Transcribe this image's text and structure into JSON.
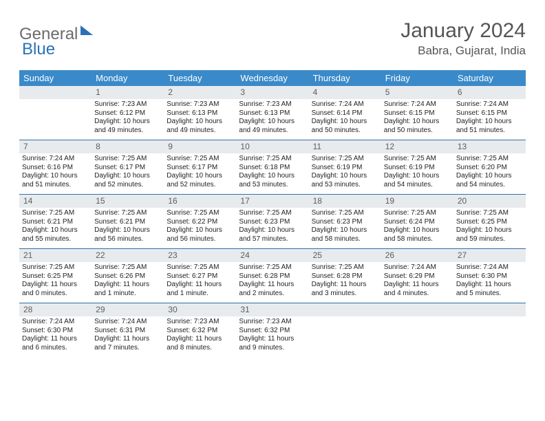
{
  "logo": {
    "part1": "General",
    "part2": "Blue"
  },
  "title": "January 2024",
  "location": "Babra, Gujarat, India",
  "colors": {
    "header_bar": "#3a8ac9",
    "daynum_bg": "#e8ebee",
    "row_border": "#2f6fa8",
    "logo_gray": "#6b6b6b",
    "logo_blue": "#2a72b5"
  },
  "days_of_week": [
    "Sunday",
    "Monday",
    "Tuesday",
    "Wednesday",
    "Thursday",
    "Friday",
    "Saturday"
  ],
  "weeks": [
    [
      {
        "n": "",
        "sr": "",
        "ss": "",
        "dl": ""
      },
      {
        "n": "1",
        "sr": "Sunrise: 7:23 AM",
        "ss": "Sunset: 6:12 PM",
        "dl": "Daylight: 10 hours and 49 minutes."
      },
      {
        "n": "2",
        "sr": "Sunrise: 7:23 AM",
        "ss": "Sunset: 6:13 PM",
        "dl": "Daylight: 10 hours and 49 minutes."
      },
      {
        "n": "3",
        "sr": "Sunrise: 7:23 AM",
        "ss": "Sunset: 6:13 PM",
        "dl": "Daylight: 10 hours and 49 minutes."
      },
      {
        "n": "4",
        "sr": "Sunrise: 7:24 AM",
        "ss": "Sunset: 6:14 PM",
        "dl": "Daylight: 10 hours and 50 minutes."
      },
      {
        "n": "5",
        "sr": "Sunrise: 7:24 AM",
        "ss": "Sunset: 6:15 PM",
        "dl": "Daylight: 10 hours and 50 minutes."
      },
      {
        "n": "6",
        "sr": "Sunrise: 7:24 AM",
        "ss": "Sunset: 6:15 PM",
        "dl": "Daylight: 10 hours and 51 minutes."
      }
    ],
    [
      {
        "n": "7",
        "sr": "Sunrise: 7:24 AM",
        "ss": "Sunset: 6:16 PM",
        "dl": "Daylight: 10 hours and 51 minutes."
      },
      {
        "n": "8",
        "sr": "Sunrise: 7:25 AM",
        "ss": "Sunset: 6:17 PM",
        "dl": "Daylight: 10 hours and 52 minutes."
      },
      {
        "n": "9",
        "sr": "Sunrise: 7:25 AM",
        "ss": "Sunset: 6:17 PM",
        "dl": "Daylight: 10 hours and 52 minutes."
      },
      {
        "n": "10",
        "sr": "Sunrise: 7:25 AM",
        "ss": "Sunset: 6:18 PM",
        "dl": "Daylight: 10 hours and 53 minutes."
      },
      {
        "n": "11",
        "sr": "Sunrise: 7:25 AM",
        "ss": "Sunset: 6:19 PM",
        "dl": "Daylight: 10 hours and 53 minutes."
      },
      {
        "n": "12",
        "sr": "Sunrise: 7:25 AM",
        "ss": "Sunset: 6:19 PM",
        "dl": "Daylight: 10 hours and 54 minutes."
      },
      {
        "n": "13",
        "sr": "Sunrise: 7:25 AM",
        "ss": "Sunset: 6:20 PM",
        "dl": "Daylight: 10 hours and 54 minutes."
      }
    ],
    [
      {
        "n": "14",
        "sr": "Sunrise: 7:25 AM",
        "ss": "Sunset: 6:21 PM",
        "dl": "Daylight: 10 hours and 55 minutes."
      },
      {
        "n": "15",
        "sr": "Sunrise: 7:25 AM",
        "ss": "Sunset: 6:21 PM",
        "dl": "Daylight: 10 hours and 56 minutes."
      },
      {
        "n": "16",
        "sr": "Sunrise: 7:25 AM",
        "ss": "Sunset: 6:22 PM",
        "dl": "Daylight: 10 hours and 56 minutes."
      },
      {
        "n": "17",
        "sr": "Sunrise: 7:25 AM",
        "ss": "Sunset: 6:23 PM",
        "dl": "Daylight: 10 hours and 57 minutes."
      },
      {
        "n": "18",
        "sr": "Sunrise: 7:25 AM",
        "ss": "Sunset: 6:23 PM",
        "dl": "Daylight: 10 hours and 58 minutes."
      },
      {
        "n": "19",
        "sr": "Sunrise: 7:25 AM",
        "ss": "Sunset: 6:24 PM",
        "dl": "Daylight: 10 hours and 58 minutes."
      },
      {
        "n": "20",
        "sr": "Sunrise: 7:25 AM",
        "ss": "Sunset: 6:25 PM",
        "dl": "Daylight: 10 hours and 59 minutes."
      }
    ],
    [
      {
        "n": "21",
        "sr": "Sunrise: 7:25 AM",
        "ss": "Sunset: 6:25 PM",
        "dl": "Daylight: 11 hours and 0 minutes."
      },
      {
        "n": "22",
        "sr": "Sunrise: 7:25 AM",
        "ss": "Sunset: 6:26 PM",
        "dl": "Daylight: 11 hours and 1 minute."
      },
      {
        "n": "23",
        "sr": "Sunrise: 7:25 AM",
        "ss": "Sunset: 6:27 PM",
        "dl": "Daylight: 11 hours and 1 minute."
      },
      {
        "n": "24",
        "sr": "Sunrise: 7:25 AM",
        "ss": "Sunset: 6:28 PM",
        "dl": "Daylight: 11 hours and 2 minutes."
      },
      {
        "n": "25",
        "sr": "Sunrise: 7:25 AM",
        "ss": "Sunset: 6:28 PM",
        "dl": "Daylight: 11 hours and 3 minutes."
      },
      {
        "n": "26",
        "sr": "Sunrise: 7:24 AM",
        "ss": "Sunset: 6:29 PM",
        "dl": "Daylight: 11 hours and 4 minutes."
      },
      {
        "n": "27",
        "sr": "Sunrise: 7:24 AM",
        "ss": "Sunset: 6:30 PM",
        "dl": "Daylight: 11 hours and 5 minutes."
      }
    ],
    [
      {
        "n": "28",
        "sr": "Sunrise: 7:24 AM",
        "ss": "Sunset: 6:30 PM",
        "dl": "Daylight: 11 hours and 6 minutes."
      },
      {
        "n": "29",
        "sr": "Sunrise: 7:24 AM",
        "ss": "Sunset: 6:31 PM",
        "dl": "Daylight: 11 hours and 7 minutes."
      },
      {
        "n": "30",
        "sr": "Sunrise: 7:23 AM",
        "ss": "Sunset: 6:32 PM",
        "dl": "Daylight: 11 hours and 8 minutes."
      },
      {
        "n": "31",
        "sr": "Sunrise: 7:23 AM",
        "ss": "Sunset: 6:32 PM",
        "dl": "Daylight: 11 hours and 9 minutes."
      },
      {
        "n": "",
        "sr": "",
        "ss": "",
        "dl": ""
      },
      {
        "n": "",
        "sr": "",
        "ss": "",
        "dl": ""
      },
      {
        "n": "",
        "sr": "",
        "ss": "",
        "dl": ""
      }
    ]
  ]
}
